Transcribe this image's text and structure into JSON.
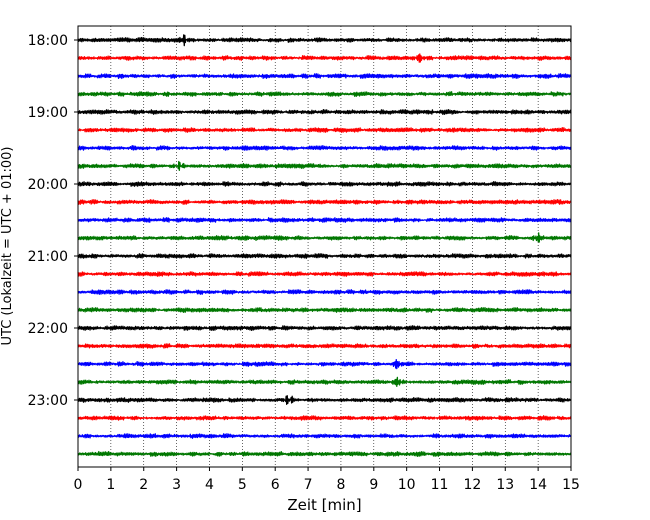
{
  "chart_data": {
    "type": "line",
    "title": "",
    "xlabel": "Zeit  [min]",
    "ylabel": "UTC (Lokalzeit = UTC + 01:00)",
    "xlim": [
      0,
      15
    ],
    "x_ticks": [
      "0",
      "1",
      "2",
      "3",
      "4",
      "5",
      "6",
      "7",
      "8",
      "9",
      "10",
      "11",
      "12",
      "13",
      "14",
      "15"
    ],
    "y_ticks": [
      "18:00",
      "19:00",
      "20:00",
      "21:00",
      "22:00",
      "23:00"
    ],
    "grid": "vertical dotted",
    "trace_interval_min": 15,
    "trace_colors": [
      "#000000",
      "#ff0000",
      "#0000ff",
      "#007700"
    ],
    "traces": [
      {
        "start": "18:00",
        "color": "#000000"
      },
      {
        "start": "18:15",
        "color": "#ff0000"
      },
      {
        "start": "18:30",
        "color": "#0000ff"
      },
      {
        "start": "18:45",
        "color": "#007700"
      },
      {
        "start": "19:00",
        "color": "#000000"
      },
      {
        "start": "19:15",
        "color": "#ff0000"
      },
      {
        "start": "19:30",
        "color": "#0000ff"
      },
      {
        "start": "19:45",
        "color": "#007700"
      },
      {
        "start": "20:00",
        "color": "#000000"
      },
      {
        "start": "20:15",
        "color": "#ff0000"
      },
      {
        "start": "20:30",
        "color": "#0000ff"
      },
      {
        "start": "20:45",
        "color": "#007700"
      },
      {
        "start": "21:00",
        "color": "#000000"
      },
      {
        "start": "21:15",
        "color": "#ff0000"
      },
      {
        "start": "21:30",
        "color": "#0000ff"
      },
      {
        "start": "21:45",
        "color": "#007700"
      },
      {
        "start": "22:00",
        "color": "#000000"
      },
      {
        "start": "22:15",
        "color": "#ff0000"
      },
      {
        "start": "22:30",
        "color": "#0000ff"
      },
      {
        "start": "22:45",
        "color": "#007700"
      },
      {
        "start": "23:00",
        "color": "#000000"
      },
      {
        "start": "23:15",
        "color": "#ff0000"
      },
      {
        "start": "23:30",
        "color": "#0000ff"
      },
      {
        "start": "23:45",
        "color": "#007700"
      }
    ],
    "events": [
      {
        "trace": "18:00",
        "t": 3.2
      },
      {
        "trace": "18:15",
        "t": 10.4
      },
      {
        "trace": "19:45",
        "t": 3.1
      },
      {
        "trace": "20:45",
        "t": 14.0
      },
      {
        "trace": "22:30",
        "t": 9.7
      },
      {
        "trace": "22:45",
        "t": 9.7
      },
      {
        "trace": "23:00",
        "t": 6.4
      }
    ]
  }
}
